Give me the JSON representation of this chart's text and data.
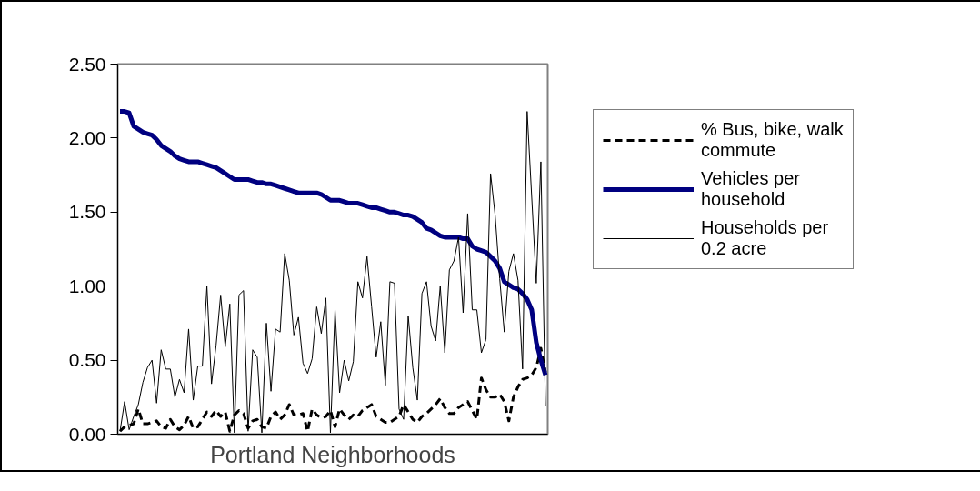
{
  "chart_data": {
    "type": "line",
    "xlabel": "Portland Neighborhoods",
    "categories": [
      null,
      null,
      null,
      null,
      null,
      null,
      null,
      null,
      null,
      null,
      null,
      null,
      null,
      null,
      null,
      null,
      null,
      null,
      null,
      null,
      null,
      null,
      null,
      null,
      null,
      null,
      null,
      null,
      null,
      null,
      null,
      null,
      null,
      null,
      null,
      null,
      null,
      null,
      null,
      null,
      null,
      null,
      null,
      null,
      null,
      null,
      null,
      null,
      null,
      null,
      null,
      null,
      null,
      null,
      null,
      null,
      null,
      null,
      null,
      null,
      null,
      null,
      null,
      null,
      null,
      null,
      null,
      null,
      null,
      null,
      null,
      null,
      null,
      null,
      null,
      null,
      null,
      null,
      null,
      null,
      null,
      null,
      null,
      null,
      null,
      null,
      null,
      null,
      null,
      null,
      null,
      null,
      null,
      null
    ],
    "ylim": [
      0,
      2.5
    ],
    "yticks": [
      {
        "value": 0,
        "label": "0.00"
      },
      {
        "value": 0.5,
        "label": "0.50"
      },
      {
        "value": 1,
        "label": "1.00"
      },
      {
        "value": 1.5,
        "label": "1.50"
      },
      {
        "value": 2,
        "label": "2.00"
      },
      {
        "value": 2.5,
        "label": "2.50"
      }
    ],
    "tick_labels": "y",
    "legend": "right",
    "marker": "none",
    "series": [
      {
        "name": "% Bus, bike, walk\ncommute",
        "color": "#000000",
        "line_style": "dashed",
        "values": [
          0.02,
          0.05,
          0.06,
          0.07,
          0.17,
          0.07,
          0.07,
          0.08,
          0.09,
          0.05,
          0.04,
          0.1,
          0.05,
          0.03,
          0.06,
          0.12,
          0.04,
          0.05,
          0.1,
          0.15,
          0.12,
          0.16,
          0.12,
          0.15,
          0.02,
          0.13,
          0.16,
          0.14,
          0.04,
          0.09,
          0.1,
          0.05,
          0.04,
          0.12,
          0.15,
          0.1,
          0.13,
          0.2,
          0.13,
          0.13,
          0.14,
          0.02,
          0.17,
          0.13,
          0.11,
          0.12,
          0.16,
          0.05,
          0.17,
          0.13,
          0.1,
          0.13,
          0.12,
          0.16,
          0.18,
          0.2,
          0.12,
          0.1,
          0.08,
          0.08,
          0.1,
          0.12,
          0.2,
          0.15,
          0.1,
          0.08,
          0.12,
          0.14,
          0.17,
          0.2,
          0.24,
          0.18,
          0.14,
          0.14,
          0.18,
          0.2,
          0.22,
          0.16,
          0.1,
          0.38,
          0.3,
          0.25,
          0.25,
          0.27,
          0.22,
          0.09,
          0.25,
          0.32,
          0.37,
          0.38,
          0.4,
          0.45,
          0.58,
          0.42
        ]
      },
      {
        "name": "Vehicles per\nhousehold",
        "color": "#000080",
        "line_style": "solid",
        "values": [
          2.18,
          2.18,
          2.17,
          2.08,
          2.06,
          2.04,
          2.03,
          2.02,
          1.99,
          1.95,
          1.93,
          1.91,
          1.88,
          1.86,
          1.85,
          1.84,
          1.84,
          1.84,
          1.83,
          1.82,
          1.81,
          1.8,
          1.78,
          1.76,
          1.74,
          1.72,
          1.72,
          1.72,
          1.72,
          1.71,
          1.7,
          1.7,
          1.69,
          1.69,
          1.68,
          1.67,
          1.66,
          1.65,
          1.64,
          1.63,
          1.63,
          1.63,
          1.63,
          1.63,
          1.62,
          1.6,
          1.58,
          1.58,
          1.58,
          1.57,
          1.56,
          1.56,
          1.56,
          1.55,
          1.54,
          1.53,
          1.53,
          1.52,
          1.51,
          1.5,
          1.5,
          1.49,
          1.48,
          1.48,
          1.47,
          1.45,
          1.43,
          1.39,
          1.38,
          1.36,
          1.34,
          1.33,
          1.33,
          1.33,
          1.33,
          1.32,
          1.32,
          1.27,
          1.25,
          1.24,
          1.23,
          1.2,
          1.17,
          1.12,
          1.03,
          1.01,
          0.99,
          0.98,
          0.95,
          0.91,
          0.84,
          0.62,
          0.5,
          0.4
        ]
      },
      {
        "name": "Households per\n0.2 acre",
        "color": "#000000",
        "line_style": "solid",
        "values": [
          0.02,
          0.22,
          0.03,
          0.12,
          0.2,
          0.35,
          0.45,
          0.5,
          0.21,
          0.57,
          0.44,
          0.44,
          0.25,
          0.37,
          0.28,
          0.71,
          0.23,
          0.46,
          0.46,
          1.0,
          0.34,
          0.6,
          0.94,
          0.59,
          0.88,
          0.01,
          0.94,
          0.97,
          0.02,
          0.57,
          0.52,
          0.01,
          0.75,
          0.29,
          0.71,
          0.69,
          1.22,
          1.04,
          0.67,
          0.79,
          0.48,
          0.41,
          0.51,
          0.86,
          0.68,
          0.92,
          0.01,
          0.84,
          0.28,
          0.5,
          0.36,
          0.49,
          1.03,
          0.92,
          1.2,
          0.86,
          0.52,
          0.76,
          0.33,
          1.03,
          1.02,
          0.17,
          0.1,
          0.8,
          0.45,
          0.23,
          0.95,
          1.03,
          0.73,
          0.63,
          1.0,
          0.55,
          1.11,
          1.17,
          1.33,
          0.82,
          1.49,
          0.84,
          0.84,
          0.55,
          0.64,
          1.76,
          1.48,
          1.05,
          0.69,
          1.1,
          1.22,
          1.04,
          0.44,
          2.18,
          1.6,
          1.02,
          1.84,
          0.19
        ]
      }
    ]
  }
}
